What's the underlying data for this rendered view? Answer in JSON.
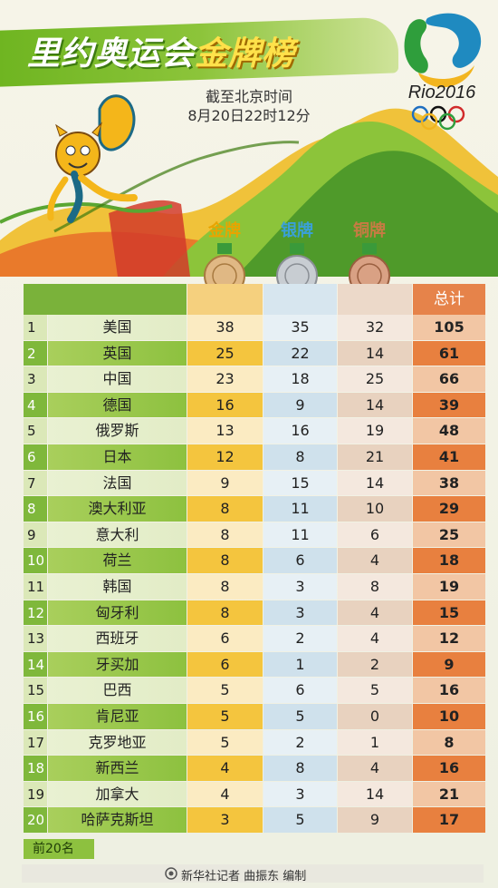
{
  "header": {
    "title_part1": "里约奥运会",
    "title_part2": "金牌榜",
    "cutoff_line1": "截至北京时间",
    "cutoff_line2": "8月20日22时12分",
    "logo_text": "Rio2016"
  },
  "medal_headers": {
    "gold": "金牌",
    "silver": "银牌",
    "bronze": "铜牌",
    "total": "总计"
  },
  "rows": [
    {
      "rank": "1",
      "country": "美国",
      "gold": "38",
      "silver": "35",
      "bronze": "32",
      "total": "105"
    },
    {
      "rank": "2",
      "country": "英国",
      "gold": "25",
      "silver": "22",
      "bronze": "14",
      "total": "61"
    },
    {
      "rank": "3",
      "country": "中国",
      "gold": "23",
      "silver": "18",
      "bronze": "25",
      "total": "66"
    },
    {
      "rank": "4",
      "country": "德国",
      "gold": "16",
      "silver": "9",
      "bronze": "14",
      "total": "39"
    },
    {
      "rank": "5",
      "country": "俄罗斯",
      "gold": "13",
      "silver": "16",
      "bronze": "19",
      "total": "48"
    },
    {
      "rank": "6",
      "country": "日本",
      "gold": "12",
      "silver": "8",
      "bronze": "21",
      "total": "41"
    },
    {
      "rank": "7",
      "country": "法国",
      "gold": "9",
      "silver": "15",
      "bronze": "14",
      "total": "38"
    },
    {
      "rank": "8",
      "country": "澳大利亚",
      "gold": "8",
      "silver": "11",
      "bronze": "10",
      "total": "29"
    },
    {
      "rank": "9",
      "country": "意大利",
      "gold": "8",
      "silver": "11",
      "bronze": "6",
      "total": "25"
    },
    {
      "rank": "10",
      "country": "荷兰",
      "gold": "8",
      "silver": "6",
      "bronze": "4",
      "total": "18"
    },
    {
      "rank": "11",
      "country": "韩国",
      "gold": "8",
      "silver": "3",
      "bronze": "8",
      "total": "19"
    },
    {
      "rank": "12",
      "country": "匈牙利",
      "gold": "8",
      "silver": "3",
      "bronze": "4",
      "total": "15"
    },
    {
      "rank": "13",
      "country": "西班牙",
      "gold": "6",
      "silver": "2",
      "bronze": "4",
      "total": "12"
    },
    {
      "rank": "14",
      "country": "牙买加",
      "gold": "6",
      "silver": "1",
      "bronze": "2",
      "total": "9"
    },
    {
      "rank": "15",
      "country": "巴西",
      "gold": "5",
      "silver": "6",
      "bronze": "5",
      "total": "16"
    },
    {
      "rank": "16",
      "country": "肯尼亚",
      "gold": "5",
      "silver": "5",
      "bronze": "0",
      "total": "10"
    },
    {
      "rank": "17",
      "country": "克罗地亚",
      "gold": "5",
      "silver": "2",
      "bronze": "1",
      "total": "8"
    },
    {
      "rank": "18",
      "country": "新西兰",
      "gold": "4",
      "silver": "8",
      "bronze": "4",
      "total": "16"
    },
    {
      "rank": "19",
      "country": "加拿大",
      "gold": "4",
      "silver": "3",
      "bronze": "14",
      "total": "21"
    },
    {
      "rank": "20",
      "country": "哈萨克斯坦",
      "gold": "3",
      "silver": "5",
      "bronze": "9",
      "total": "17"
    }
  ],
  "footer": {
    "top_label": "前20名",
    "credit": "新华社记者 曲振东 编制"
  },
  "colors": {
    "green": "#7fb83b",
    "gold": "#f4c53e",
    "silver": "#cfe1ec",
    "bronze": "#e8d2bf",
    "total": "#e8803f"
  }
}
